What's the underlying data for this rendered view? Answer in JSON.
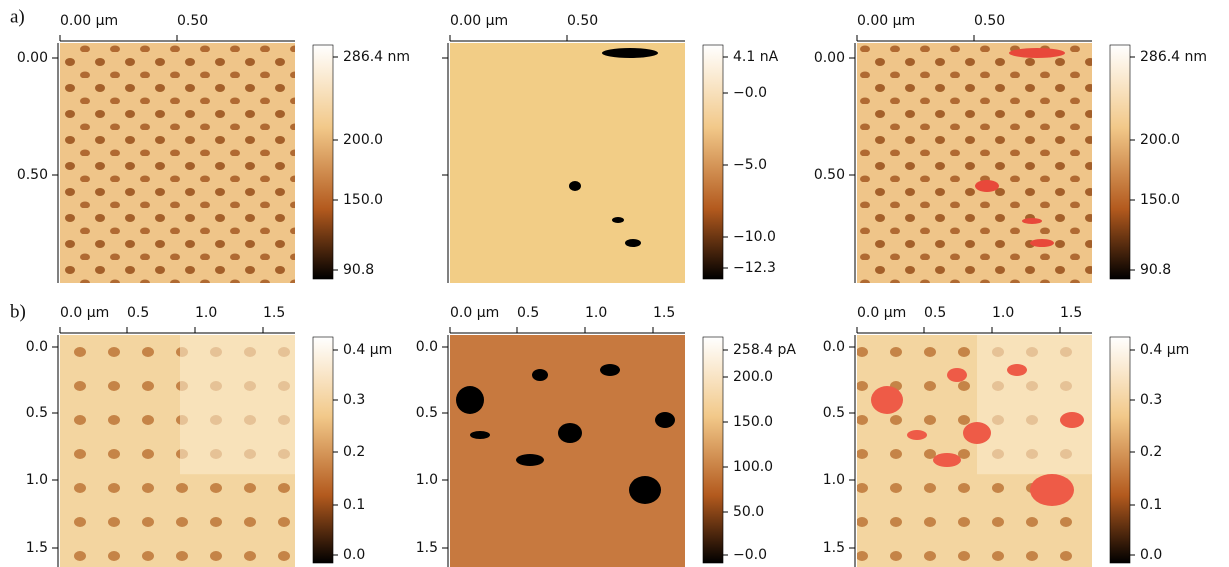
{
  "rows": [
    {
      "label": "a)",
      "panels": [
        {
          "xticks": [
            "0.00 µm",
            "0.50"
          ],
          "yticks": [
            "0.00",
            "0.50"
          ],
          "colorbar": [
            "286.4 nm",
            "200.0",
            "150.0",
            "90.8"
          ]
        },
        {
          "xticks": [
            "0.00 µm",
            "0.50"
          ],
          "yticks": [],
          "colorbar": [
            "4.1 nA",
            "−0.0",
            "−5.0",
            "−10.0",
            "−12.3"
          ]
        },
        {
          "xticks": [
            "0.00 µm",
            "0.50"
          ],
          "yticks": [
            "0.00",
            "0.50"
          ],
          "colorbar": [
            "286.4 nm",
            "200.0",
            "150.0",
            "90.8"
          ]
        }
      ]
    },
    {
      "label": "b)",
      "panels": [
        {
          "xticks": [
            "0.0 µm",
            "0.5",
            "1.0",
            "1.5"
          ],
          "yticks": [
            "0.0",
            "0.5",
            "1.0",
            "1.5"
          ],
          "colorbar": [
            "0.4 µm",
            "0.3",
            "0.2",
            "0.1",
            "0.0"
          ]
        },
        {
          "xticks": [
            "0.0 µm",
            "0.5",
            "1.0",
            "1.5"
          ],
          "yticks": [
            "0.0",
            "0.5",
            "1.0",
            "1.5"
          ],
          "colorbar": [
            "258.4 pA",
            "200.0",
            "150.0",
            "100.0",
            "50.0",
            "−0.0"
          ]
        },
        {
          "xticks": [
            "0.0 µm",
            "0.5",
            "1.0",
            "1.5"
          ],
          "yticks": [
            "0.0",
            "0.5",
            "1.0",
            "1.5"
          ],
          "colorbar": [
            "0.4 µm",
            "0.3",
            "0.2",
            "0.1",
            "0.0"
          ]
        }
      ]
    }
  ]
}
